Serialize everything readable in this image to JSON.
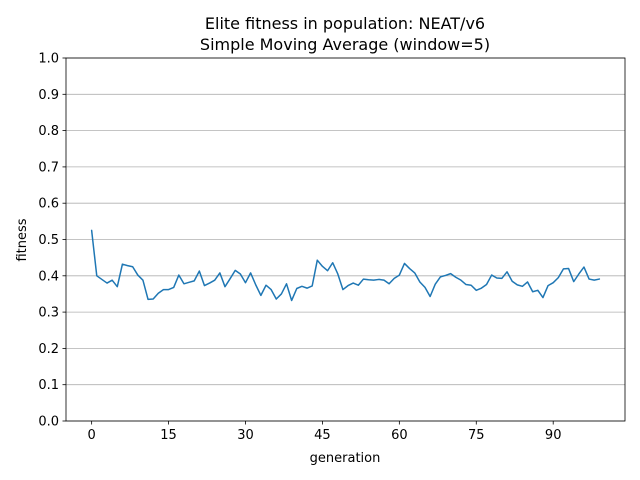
{
  "chart_data": {
    "type": "line",
    "title": "Elite fitness in population: NEAT/v6",
    "subtitle": "Simple Moving Average (window=5)",
    "xlabel": "generation",
    "ylabel": "fitness",
    "xlim": [
      -5,
      104
    ],
    "ylim": [
      0,
      1
    ],
    "xticks": [
      0,
      15,
      30,
      45,
      60,
      75,
      90
    ],
    "xtick_labels": [
      "0",
      "15",
      "30",
      "45",
      "60",
      "75",
      "90"
    ],
    "yticks": [
      0,
      0.1,
      0.2,
      0.3,
      0.4,
      0.5,
      0.6,
      0.7,
      0.8,
      0.9,
      1.0
    ],
    "ytick_labels": [
      "0.0",
      "0.1",
      "0.2",
      "0.3",
      "0.4",
      "0.5",
      "0.6",
      "0.7",
      "0.8",
      "0.9",
      "1.0"
    ],
    "grid": "horizontal",
    "colors": {
      "line": "#1f77b4",
      "grid": "#b0b0b0"
    },
    "series": [
      {
        "x": [
          0,
          1,
          2,
          3,
          4,
          5,
          6,
          7,
          8,
          9,
          10,
          11,
          12,
          13,
          14,
          15,
          16,
          17,
          18,
          19,
          20,
          21,
          22,
          23,
          24,
          25,
          26,
          27,
          28,
          29,
          30,
          31,
          32,
          33,
          34,
          35,
          36,
          37,
          38,
          39,
          40,
          41,
          42,
          43,
          44,
          45,
          46,
          47,
          48,
          49,
          50,
          51,
          52,
          53,
          54,
          55,
          56,
          57,
          58,
          59,
          60,
          61,
          62,
          63,
          64,
          65,
          66,
          67,
          68,
          69,
          70,
          71,
          72,
          73,
          74,
          75,
          76,
          77,
          78,
          79,
          80,
          81,
          82,
          83,
          84,
          85,
          86,
          87,
          88,
          89,
          90,
          91,
          92,
          93,
          94,
          95,
          96,
          97,
          98,
          99
        ],
        "values": [
          0.525,
          0.4,
          0.39,
          0.38,
          0.388,
          0.37,
          0.432,
          0.428,
          0.425,
          0.402,
          0.388,
          0.335,
          0.336,
          0.352,
          0.362,
          0.362,
          0.368,
          0.402,
          0.378,
          0.382,
          0.386,
          0.413,
          0.373,
          0.38,
          0.388,
          0.408,
          0.37,
          0.392,
          0.415,
          0.405,
          0.381,
          0.408,
          0.375,
          0.346,
          0.374,
          0.362,
          0.336,
          0.35,
          0.378,
          0.332,
          0.365,
          0.371,
          0.366,
          0.372,
          0.443,
          0.426,
          0.414,
          0.436,
          0.405,
          0.362,
          0.373,
          0.38,
          0.374,
          0.391,
          0.389,
          0.388,
          0.39,
          0.388,
          0.378,
          0.393,
          0.402,
          0.434,
          0.42,
          0.408,
          0.383,
          0.368,
          0.343,
          0.377,
          0.397,
          0.401,
          0.406,
          0.396,
          0.388,
          0.376,
          0.374,
          0.36,
          0.366,
          0.376,
          0.402,
          0.394,
          0.393,
          0.411,
          0.385,
          0.375,
          0.371,
          0.383,
          0.356,
          0.36,
          0.34,
          0.373,
          0.381,
          0.395,
          0.419,
          0.42,
          0.384,
          0.405,
          0.424,
          0.391,
          0.388,
          0.391
        ]
      }
    ]
  }
}
